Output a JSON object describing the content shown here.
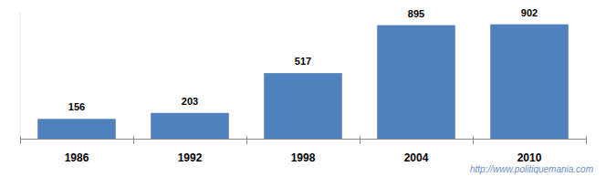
{
  "chart_data": {
    "type": "bar",
    "categories": [
      "1986",
      "1992",
      "1998",
      "2004",
      "2010"
    ],
    "values": [
      156,
      203,
      517,
      895,
      902
    ],
    "color": "#4f81bd",
    "ylim": [
      0,
      1000
    ],
    "data_labels": true,
    "tick_labels": "x",
    "annotations": [
      "http://www.politiquemania.com"
    ]
  }
}
